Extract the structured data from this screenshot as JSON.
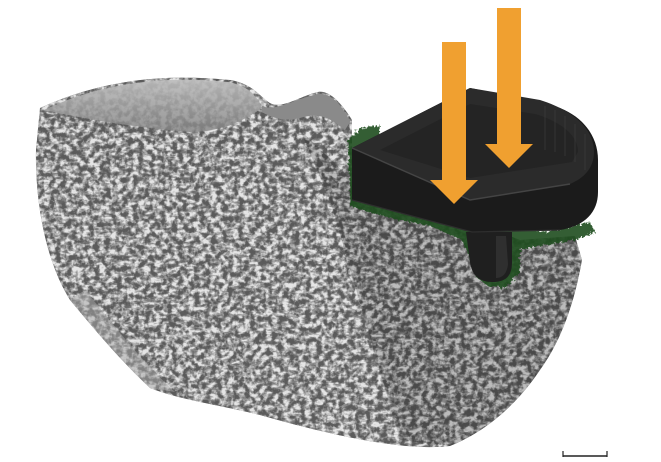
{
  "scene": {
    "colors": {
      "background": "#ffffff",
      "bone_light": "#9a9a9a",
      "bone_mid": "#6b6b6b",
      "bone_dark": "#2f2f2f",
      "bone_shadow": "#1a1a1a",
      "implant": "#1f1f1f",
      "implant_edge": "#3a3a3a",
      "interface": "#1f5a1f",
      "arrow": "#f0a030",
      "scale_bar": "#222222"
    },
    "elements": [
      "bone-block",
      "tibial-implant",
      "load-arrow",
      "load-arrow",
      "scale-bar"
    ]
  }
}
